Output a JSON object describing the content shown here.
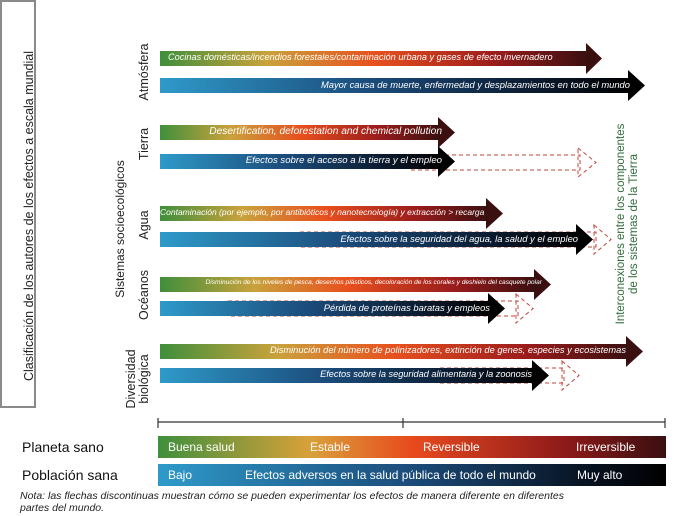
{
  "left_title": "Clasificación de los autores de los efectos a escala mundial",
  "axis_title": "Sistemas socioecológicos",
  "right_title_line1": "Interconexiones entre los componentes",
  "right_title_line2": "de los sistemas de la Tierra",
  "categories": {
    "atmosfera": "Atmósfera",
    "tierra": "Tierra",
    "agua": "Agua",
    "oceanos": "Océanos",
    "biodiversidad_line1": "Diversidad",
    "biodiversidad_line2": "biológica"
  },
  "arrows": {
    "atm_planet": "Cocinas domésticas/incendios forestales/contaminación urbana y gases de efecto invernadero",
    "atm_people": "Mayor causa de muerte, enfermedad y desplazamientos en todo el mundo",
    "tierra_planet": "Desertification, deforestation and chemical pollution",
    "tierra_people": "Efectos sobre el acceso a la tierra y el empleo",
    "agua_planet": "Contaminación (por ejemplo, por antibióticos y nanotecnología) y extracción > recarga",
    "agua_people": "Efectos sobre la seguridad del agua, la salud y el empleo",
    "oceanos_planet": "Disminución de los niveles de pesca, desechos plásticos, decoloración de los corales y deshielo del casquete polar",
    "oceanos_people": "Pérdida de proteínas baratas y empleos",
    "bio_planet": "Disminución del número de polinizadores, extinción de genes, especies y ecosistemas",
    "bio_people": "Efectos sobre la seguridad alimentaria y la zoonosis"
  },
  "legend": {
    "planet_label": "Planeta sano",
    "planet_scale": [
      "Buena salud",
      "Estable",
      "Reversible",
      "Irreversible"
    ],
    "people_label": "Población sana",
    "people_low": "Bajo",
    "people_mid": "Efectos adversos en la salud pública de todo el mundo",
    "people_high": "Muy alto"
  },
  "note_line1": "Nota: las flechas discontinuas muestran cómo se pueden experimentar los efectos de manera diferente en diferentes",
  "note_line2": "partes del mundo.",
  "colors": {
    "planet_gradient": [
      "#3f8f3c",
      "#d9a13a",
      "#e84a1e",
      "#9b1c1c",
      "#3a0f10"
    ],
    "people_gradient": [
      "#2e9ac9",
      "#1b4b7a",
      "#0b1a2e",
      "#000000"
    ],
    "box_border": "#8a8a8a",
    "right_text": "#2f6b3a"
  }
}
